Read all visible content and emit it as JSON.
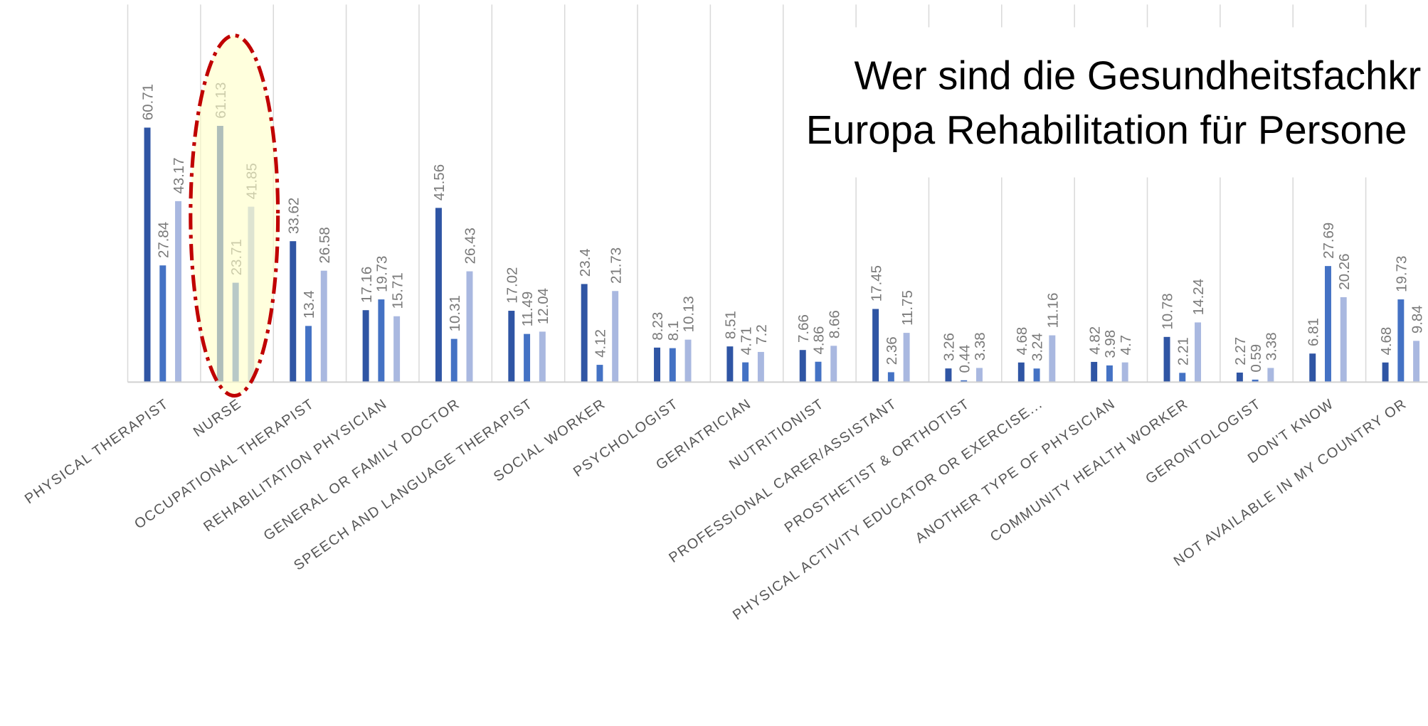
{
  "chart_data": {
    "type": "bar",
    "title": [
      "Wer sind die Gesundheitsfachkr",
      "Europa Rehabilitation für Persone"
    ],
    "categories": [
      "PHYSICAL THERAPIST",
      "NURSE",
      "OCCUPATIONAL THERAPIST",
      "REHABILITATION PHYSICIAN",
      "GENERAL OR FAMILY DOCTOR",
      "SPEECH AND LANGUAGE THERAPIST",
      "SOCIAL WORKER",
      "PSYCHOLOGIST",
      "GERIATRICIAN",
      "NUTRITIONIST",
      "PROFESSIONAL CARER/ASSISTANT",
      "PROSTHETIST & ORTHOTIST",
      "PHYSICAL ACTIVITY EDUCATOR OR EXERCISE...",
      "ANOTHER TYPE OF PHYSICIAN",
      "COMMUNITY HEALTH WORKER",
      "GERONTOLOGIST",
      "DON'T KNOW",
      "NOT AVAILABLE IN MY COUNTRY OR"
    ],
    "series": [
      {
        "color": "#2f55a4",
        "values": [
          60.71,
          61.13,
          33.62,
          17.16,
          41.56,
          17.02,
          23.4,
          8.23,
          8.51,
          7.66,
          17.45,
          3.26,
          4.68,
          4.82,
          10.78,
          2.27,
          6.81,
          4.68
        ]
      },
      {
        "color": "#4472c4",
        "values": [
          27.84,
          23.71,
          13.4,
          19.73,
          10.31,
          11.49,
          4.12,
          8.1,
          4.71,
          4.86,
          2.36,
          0.44,
          3.24,
          3.98,
          2.21,
          0.59,
          27.69,
          19.73
        ]
      },
      {
        "color": "#a9b8e0",
        "values": [
          43.17,
          41.85,
          26.58,
          15.71,
          26.43,
          12.04,
          21.73,
          10.13,
          7.2,
          8.66,
          11.75,
          3.38,
          11.16,
          4.7,
          14.24,
          3.38,
          20.26,
          9.84
        ]
      }
    ],
    "highlight_category": 1,
    "grid": true
  }
}
